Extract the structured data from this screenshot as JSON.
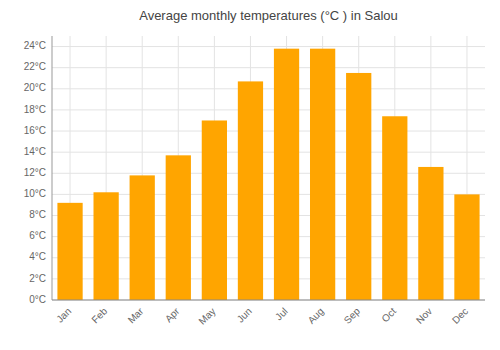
{
  "chart_data": {
    "type": "bar",
    "title": "Average monthly temperatures (°C ) in Salou",
    "categories": [
      "Jan",
      "Feb",
      "Mar",
      "Apr",
      "May",
      "Jun",
      "Jul",
      "Aug",
      "Sep",
      "Oct",
      "Nov",
      "Dec"
    ],
    "values": [
      9.2,
      10.2,
      11.8,
      13.7,
      17.0,
      20.7,
      23.8,
      23.8,
      21.5,
      17.4,
      12.6,
      10.0
    ],
    "color": "#FFA500",
    "ylim": [
      0,
      25
    ],
    "yticks": [
      {
        "value": 0,
        "label": "0°C"
      },
      {
        "value": 2,
        "label": "2°C"
      },
      {
        "value": 4,
        "label": "4°C"
      },
      {
        "value": 6,
        "label": "6°C"
      },
      {
        "value": 8,
        "label": "8°C"
      },
      {
        "value": 10,
        "label": "10°C"
      },
      {
        "value": 12,
        "label": "12°C"
      },
      {
        "value": 14,
        "label": "14°C"
      },
      {
        "value": 16,
        "label": "16°C"
      },
      {
        "value": 18,
        "label": "18°C"
      },
      {
        "value": 20,
        "label": "20°C"
      },
      {
        "value": 22,
        "label": "22°C"
      },
      {
        "value": 24,
        "label": "24°C"
      }
    ],
    "grid": true
  }
}
